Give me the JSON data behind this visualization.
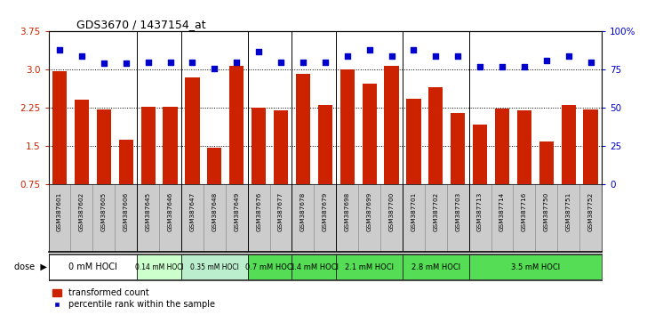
{
  "title": "GDS3670 / 1437154_at",
  "samples": [
    "GSM387601",
    "GSM387602",
    "GSM387605",
    "GSM387606",
    "GSM387645",
    "GSM387646",
    "GSM387647",
    "GSM387648",
    "GSM387649",
    "GSM387676",
    "GSM387677",
    "GSM387678",
    "GSM387679",
    "GSM387698",
    "GSM387699",
    "GSM387700",
    "GSM387701",
    "GSM387702",
    "GSM387703",
    "GSM387713",
    "GSM387714",
    "GSM387716",
    "GSM387750",
    "GSM387751",
    "GSM387752"
  ],
  "bar_values": [
    2.97,
    2.42,
    2.22,
    1.63,
    2.27,
    2.27,
    2.85,
    1.46,
    3.07,
    2.25,
    2.2,
    2.91,
    2.3,
    3.0,
    2.73,
    3.07,
    2.43,
    2.65,
    2.15,
    1.93,
    2.23,
    2.2,
    1.59,
    2.31,
    2.22
  ],
  "percentile_values": [
    88,
    84,
    79,
    79,
    80,
    80,
    80,
    76,
    80,
    87,
    80,
    80,
    80,
    84,
    88,
    84,
    88,
    84,
    84,
    77,
    77,
    77,
    81,
    84,
    80
  ],
  "dose_groups": [
    {
      "label": "0 mM HOCl",
      "start": 0,
      "end": 4,
      "color": "#ffffff",
      "fontsize": 7
    },
    {
      "label": "0.14 mM HOCl",
      "start": 4,
      "end": 6,
      "color": "#ccffcc",
      "fontsize": 5.5
    },
    {
      "label": "0.35 mM HOCl",
      "start": 6,
      "end": 9,
      "color": "#bbeecc",
      "fontsize": 5.5
    },
    {
      "label": "0.7 mM HOCl",
      "start": 9,
      "end": 11,
      "color": "#55dd55",
      "fontsize": 6
    },
    {
      "label": "1.4 mM HOCl",
      "start": 11,
      "end": 13,
      "color": "#55dd55",
      "fontsize": 6
    },
    {
      "label": "2.1 mM HOCl",
      "start": 13,
      "end": 16,
      "color": "#55dd55",
      "fontsize": 6
    },
    {
      "label": "2.8 mM HOCl",
      "start": 16,
      "end": 19,
      "color": "#55dd55",
      "fontsize": 6
    },
    {
      "label": "3.5 mM HOCl",
      "start": 19,
      "end": 25,
      "color": "#55dd55",
      "fontsize": 6
    }
  ],
  "bar_color": "#cc2200",
  "marker_color": "#0000cc",
  "ylim_left": [
    0.75,
    3.75
  ],
  "ylim_right": [
    0,
    100
  ],
  "yticks_left": [
    0.75,
    1.5,
    2.25,
    3.0,
    3.75
  ],
  "yticks_right": [
    0,
    25,
    50,
    75,
    100
  ],
  "ytick_labels_right": [
    "0",
    "25",
    "50",
    "75",
    "100%"
  ],
  "legend_bar_label": "transformed count",
  "legend_marker_label": "percentile rank within the sample",
  "sample_label_bg": "#cccccc",
  "plot_border_color": "#000000"
}
